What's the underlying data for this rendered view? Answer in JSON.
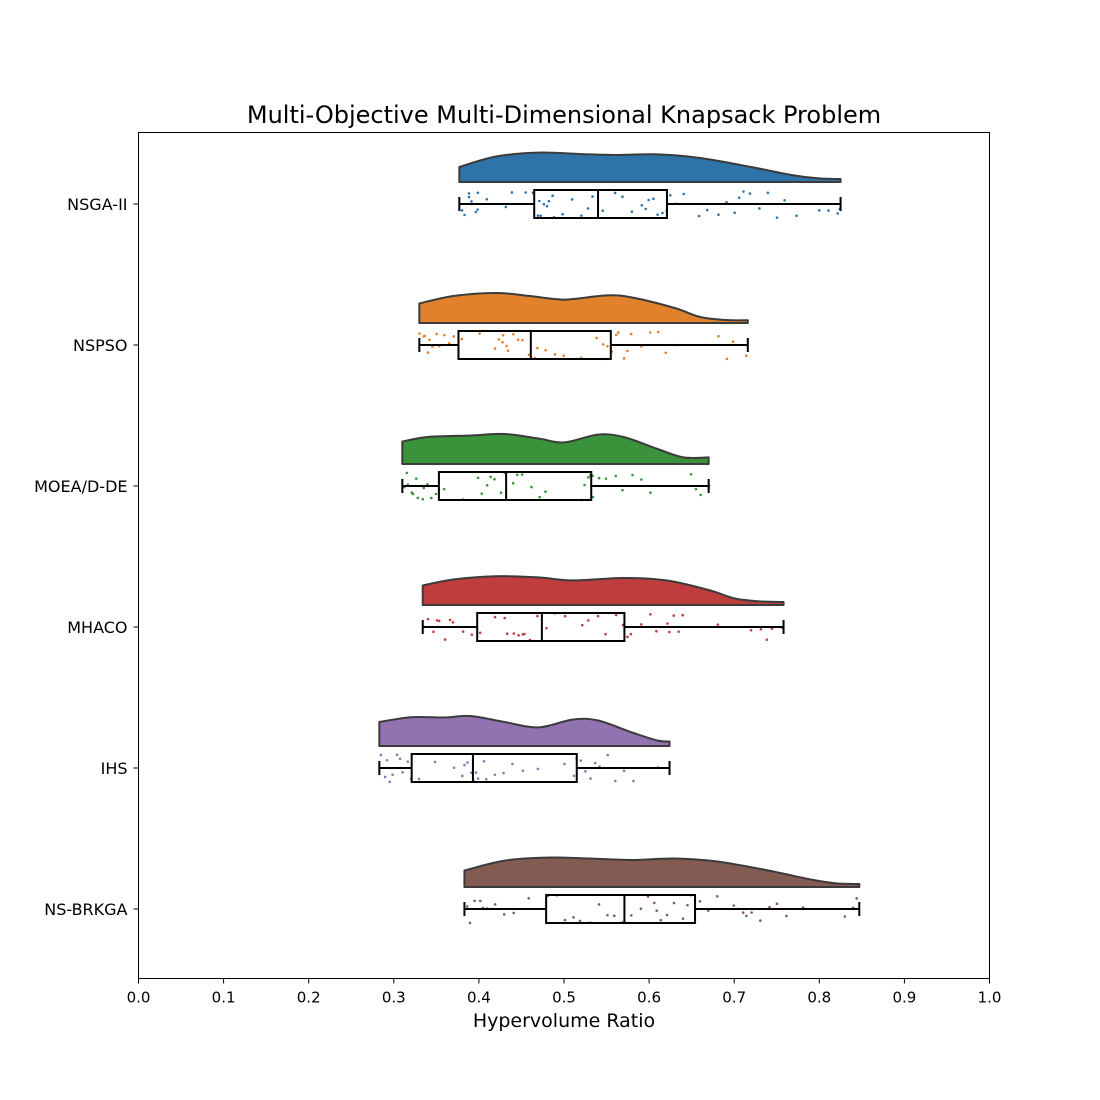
{
  "chart_data": {
    "type": "raincloud",
    "title": "Multi-Objective Multi-Dimensional Knapsack Problem",
    "xlabel": "Hypervolume Ratio",
    "ylabel": "",
    "xlim": [
      0.0,
      1.0
    ],
    "xticks": [
      "0.0",
      "0.1",
      "0.2",
      "0.3",
      "0.4",
      "0.5",
      "0.6",
      "0.7",
      "0.8",
      "0.9",
      "1.0"
    ],
    "grid": false,
    "series": [
      {
        "name": "NSGA-II",
        "color": "#2e74a8",
        "min": 0.377,
        "q1": 0.465,
        "median": 0.54,
        "q3": 0.621,
        "max": 0.825,
        "density": [
          [
            0.377,
            0.5
          ],
          [
            0.42,
            0.85
          ],
          [
            0.47,
            0.98
          ],
          [
            0.52,
            0.93
          ],
          [
            0.56,
            0.9
          ],
          [
            0.61,
            0.92
          ],
          [
            0.66,
            0.8
          ],
          [
            0.72,
            0.5
          ],
          [
            0.77,
            0.22
          ],
          [
            0.8,
            0.12
          ],
          [
            0.825,
            0.1
          ]
        ],
        "points": [
          0.38,
          0.383,
          0.387,
          0.39,
          0.392,
          0.395,
          0.398,
          0.4,
          0.41,
          0.43,
          0.44,
          0.455,
          0.465,
          0.468,
          0.47,
          0.473,
          0.476,
          0.48,
          0.483,
          0.486,
          0.49,
          0.5,
          0.51,
          0.52,
          0.53,
          0.535,
          0.545,
          0.56,
          0.57,
          0.58,
          0.59,
          0.595,
          0.6,
          0.605,
          0.61,
          0.615,
          0.62,
          0.625,
          0.63,
          0.64,
          0.66,
          0.67,
          0.68,
          0.69,
          0.7,
          0.705,
          0.71,
          0.72,
          0.73,
          0.74,
          0.75,
          0.76,
          0.775,
          0.8,
          0.81,
          0.82,
          0.825
        ]
      },
      {
        "name": "NSPSO",
        "color": "#e1812c",
        "min": 0.33,
        "q1": 0.376,
        "median": 0.461,
        "q3": 0.555,
        "max": 0.716,
        "density": [
          [
            0.33,
            0.65
          ],
          [
            0.37,
            0.9
          ],
          [
            0.42,
            1.0
          ],
          [
            0.46,
            0.9
          ],
          [
            0.5,
            0.78
          ],
          [
            0.55,
            0.92
          ],
          [
            0.58,
            0.85
          ],
          [
            0.63,
            0.5
          ],
          [
            0.66,
            0.2
          ],
          [
            0.69,
            0.1
          ],
          [
            0.716,
            0.09
          ]
        ],
        "points": [
          0.332,
          0.335,
          0.338,
          0.34,
          0.343,
          0.346,
          0.35,
          0.355,
          0.36,
          0.365,
          0.37,
          0.38,
          0.4,
          0.42,
          0.425,
          0.428,
          0.43,
          0.433,
          0.436,
          0.44,
          0.445,
          0.45,
          0.46,
          0.465,
          0.47,
          0.48,
          0.49,
          0.5,
          0.52,
          0.54,
          0.545,
          0.55,
          0.552,
          0.555,
          0.56,
          0.565,
          0.57,
          0.575,
          0.58,
          0.59,
          0.6,
          0.61,
          0.62,
          0.63,
          0.68,
          0.69,
          0.7,
          0.715
        ]
      },
      {
        "name": "MOEA/D-DE",
        "color": "#3a923a",
        "min": 0.31,
        "q1": 0.353,
        "median": 0.432,
        "q3": 0.532,
        "max": 0.67,
        "density": [
          [
            0.31,
            0.75
          ],
          [
            0.34,
            0.9
          ],
          [
            0.39,
            0.95
          ],
          [
            0.43,
            1.0
          ],
          [
            0.47,
            0.85
          ],
          [
            0.5,
            0.72
          ],
          [
            0.54,
            0.98
          ],
          [
            0.57,
            0.9
          ],
          [
            0.61,
            0.5
          ],
          [
            0.64,
            0.22
          ],
          [
            0.67,
            0.22
          ]
        ],
        "points": [
          0.312,
          0.315,
          0.318,
          0.32,
          0.323,
          0.326,
          0.33,
          0.333,
          0.336,
          0.34,
          0.345,
          0.35,
          0.36,
          0.38,
          0.4,
          0.405,
          0.41,
          0.415,
          0.42,
          0.425,
          0.43,
          0.44,
          0.445,
          0.45,
          0.46,
          0.47,
          0.48,
          0.52,
          0.525,
          0.528,
          0.53,
          0.532,
          0.535,
          0.54,
          0.55,
          0.56,
          0.57,
          0.58,
          0.59,
          0.6,
          0.65,
          0.655,
          0.66,
          0.67
        ]
      },
      {
        "name": "MHACO",
        "color": "#c03d3e",
        "min": 0.334,
        "q1": 0.398,
        "median": 0.474,
        "q3": 0.571,
        "max": 0.758,
        "density": [
          [
            0.334,
            0.65
          ],
          [
            0.37,
            0.85
          ],
          [
            0.42,
            0.96
          ],
          [
            0.47,
            0.92
          ],
          [
            0.51,
            0.82
          ],
          [
            0.57,
            0.9
          ],
          [
            0.62,
            0.82
          ],
          [
            0.67,
            0.5
          ],
          [
            0.7,
            0.22
          ],
          [
            0.73,
            0.12
          ],
          [
            0.758,
            0.1
          ]
        ],
        "points": [
          0.336,
          0.34,
          0.345,
          0.35,
          0.355,
          0.36,
          0.365,
          0.37,
          0.38,
          0.39,
          0.4,
          0.42,
          0.43,
          0.435,
          0.44,
          0.445,
          0.45,
          0.455,
          0.46,
          0.47,
          0.48,
          0.49,
          0.5,
          0.52,
          0.53,
          0.54,
          0.55,
          0.56,
          0.57,
          0.575,
          0.58,
          0.59,
          0.6,
          0.61,
          0.62,
          0.625,
          0.63,
          0.635,
          0.64,
          0.68,
          0.72,
          0.73,
          0.74,
          0.745,
          0.758
        ]
      },
      {
        "name": "IHS",
        "color": "#9372b2",
        "min": 0.283,
        "q1": 0.321,
        "median": 0.393,
        "q3": 0.515,
        "max": 0.624,
        "density": [
          [
            0.283,
            0.8
          ],
          [
            0.32,
            0.96
          ],
          [
            0.36,
            0.95
          ],
          [
            0.39,
            1.0
          ],
          [
            0.43,
            0.8
          ],
          [
            0.47,
            0.62
          ],
          [
            0.51,
            0.88
          ],
          [
            0.54,
            0.85
          ],
          [
            0.58,
            0.45
          ],
          [
            0.61,
            0.18
          ],
          [
            0.624,
            0.15
          ]
        ],
        "points": [
          0.285,
          0.29,
          0.293,
          0.296,
          0.3,
          0.303,
          0.306,
          0.31,
          0.315,
          0.32,
          0.33,
          0.35,
          0.37,
          0.38,
          0.383,
          0.386,
          0.39,
          0.393,
          0.396,
          0.4,
          0.405,
          0.41,
          0.42,
          0.43,
          0.44,
          0.45,
          0.47,
          0.5,
          0.51,
          0.515,
          0.52,
          0.525,
          0.53,
          0.535,
          0.54,
          0.55,
          0.56,
          0.57,
          0.58,
          0.61
        ]
      },
      {
        "name": "NS-BRKGA",
        "color": "#845b53",
        "min": 0.383,
        "q1": 0.479,
        "median": 0.571,
        "q3": 0.654,
        "max": 0.847,
        "density": [
          [
            0.383,
            0.55
          ],
          [
            0.43,
            0.88
          ],
          [
            0.48,
            0.98
          ],
          [
            0.53,
            0.95
          ],
          [
            0.58,
            0.9
          ],
          [
            0.63,
            0.95
          ],
          [
            0.68,
            0.85
          ],
          [
            0.74,
            0.55
          ],
          [
            0.79,
            0.25
          ],
          [
            0.82,
            0.12
          ],
          [
            0.847,
            0.1
          ]
        ],
        "points": [
          0.385,
          0.39,
          0.395,
          0.4,
          0.405,
          0.41,
          0.42,
          0.43,
          0.44,
          0.46,
          0.48,
          0.49,
          0.5,
          0.51,
          0.52,
          0.53,
          0.54,
          0.55,
          0.56,
          0.57,
          0.58,
          0.59,
          0.6,
          0.605,
          0.61,
          0.615,
          0.62,
          0.63,
          0.64,
          0.645,
          0.65,
          0.66,
          0.67,
          0.68,
          0.7,
          0.71,
          0.715,
          0.72,
          0.73,
          0.74,
          0.75,
          0.76,
          0.78,
          0.83,
          0.84,
          0.845
        ]
      }
    ]
  }
}
